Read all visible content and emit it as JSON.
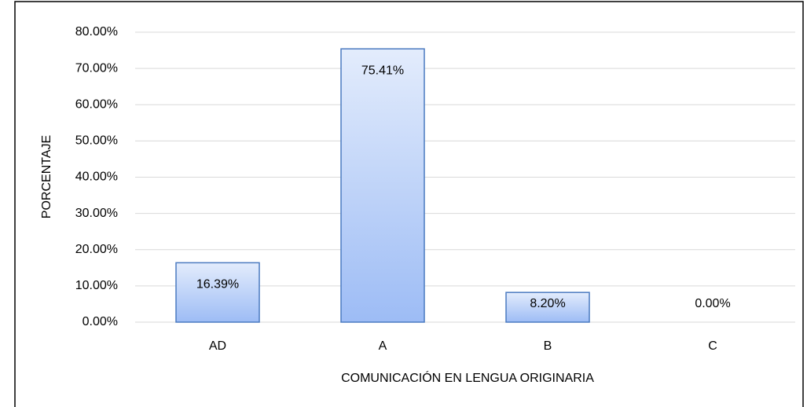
{
  "chart_data": {
    "type": "bar",
    "x_label": "COMUNICACIÓN EN LENGUA ORIGINARIA",
    "y_label": "PORCENTAJE",
    "categories": [
      "AD",
      "A",
      "B",
      "C"
    ],
    "values": [
      16.39,
      75.41,
      8.2,
      0
    ],
    "value_labels": [
      "16.39%",
      "75.41%",
      "8.20%",
      "0.00%"
    ],
    "color": "#9dbcf5",
    "ylim": [
      0,
      80
    ],
    "yticks": [
      {
        "value": 0,
        "label": "0.00%"
      },
      {
        "value": 10,
        "label": "10.00%"
      },
      {
        "value": 20,
        "label": "20.00%"
      },
      {
        "value": 30,
        "label": "30.00%"
      },
      {
        "value": 40,
        "label": "40.00%"
      },
      {
        "value": 50,
        "label": "50.00%"
      },
      {
        "value": 60,
        "label": "60.00%"
      },
      {
        "value": 70,
        "label": "70.00%"
      },
      {
        "value": 80,
        "label": "80.00%"
      }
    ],
    "grid": true
  }
}
